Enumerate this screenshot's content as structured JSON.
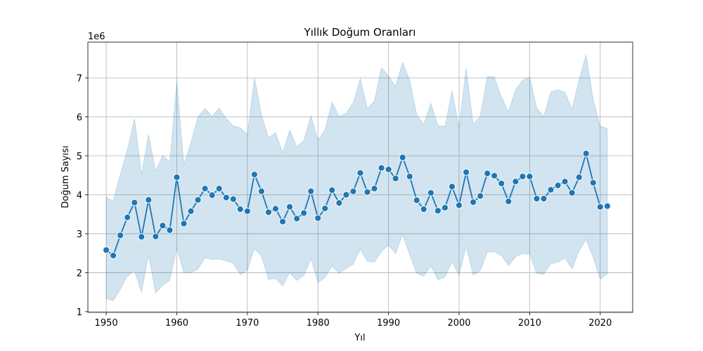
{
  "chart_data": {
    "type": "line",
    "title": "Yıllık Doğum Oranları",
    "xlabel": "Yıl",
    "ylabel": "Doğum Sayısı",
    "y_offset_label": "1e6",
    "xlim": [
      1947.4,
      2024.6
    ],
    "ylim": [
      0.98,
      7.92
    ],
    "x_ticks": [
      1950,
      1960,
      1970,
      1980,
      1990,
      2000,
      2010,
      2020
    ],
    "y_ticks": [
      1,
      2,
      3,
      4,
      5,
      6,
      7
    ],
    "grid": true,
    "colors": {
      "line": "#1f77b4",
      "band": "#1f77b4"
    },
    "series": [
      {
        "x": [
          1950,
          1951,
          1952,
          1953,
          1954,
          1955,
          1956,
          1957,
          1958,
          1959,
          1960,
          1961,
          1962,
          1963,
          1964,
          1965,
          1966,
          1967,
          1968,
          1969,
          1970,
          1971,
          1972,
          1973,
          1974,
          1975,
          1976,
          1977,
          1978,
          1979,
          1980,
          1981,
          1982,
          1983,
          1984,
          1985,
          1986,
          1987,
          1988,
          1989,
          1990,
          1991,
          1992,
          1993,
          1994,
          1995,
          1996,
          1997,
          1998,
          1999,
          2000,
          2001,
          2002,
          2003,
          2004,
          2005,
          2006,
          2007,
          2008,
          2009,
          2010,
          2011,
          2012,
          2013,
          2014,
          2015,
          2016,
          2017,
          2018,
          2019,
          2020,
          2021
        ],
        "y": [
          2.58,
          2.44,
          2.96,
          3.42,
          3.8,
          2.92,
          3.87,
          2.93,
          3.21,
          3.09,
          4.45,
          3.26,
          3.58,
          3.87,
          4.16,
          3.99,
          4.16,
          3.93,
          3.89,
          3.63,
          3.58,
          4.52,
          4.09,
          3.55,
          3.64,
          3.31,
          3.69,
          3.39,
          3.53,
          4.09,
          3.4,
          3.65,
          4.12,
          3.79,
          4.0,
          4.09,
          4.56,
          4.07,
          4.16,
          4.69,
          4.65,
          4.42,
          4.96,
          4.47,
          3.86,
          3.63,
          4.05,
          3.59,
          3.67,
          4.21,
          3.73,
          4.58,
          3.81,
          3.97,
          4.55,
          4.49,
          4.29,
          3.83,
          4.34,
          4.47,
          4.47,
          3.9,
          3.9,
          4.13,
          4.24,
          4.34,
          4.05,
          4.45,
          5.06,
          4.31,
          3.69,
          3.71
        ],
        "lower": [
          1.34,
          1.28,
          1.58,
          1.91,
          2.05,
          1.5,
          2.45,
          1.48,
          1.68,
          1.8,
          2.63,
          2.0,
          2.0,
          2.09,
          2.38,
          2.34,
          2.35,
          2.3,
          2.24,
          1.95,
          2.06,
          2.62,
          2.42,
          1.83,
          1.85,
          1.66,
          2.0,
          1.8,
          1.93,
          2.36,
          1.74,
          1.88,
          2.17,
          1.98,
          2.11,
          2.22,
          2.61,
          2.29,
          2.27,
          2.54,
          2.71,
          2.49,
          2.98,
          2.46,
          1.98,
          1.91,
          2.17,
          1.82,
          1.89,
          2.28,
          1.93,
          2.68,
          1.94,
          2.05,
          2.53,
          2.53,
          2.44,
          2.18,
          2.41,
          2.49,
          2.47,
          1.98,
          1.96,
          2.23,
          2.27,
          2.38,
          2.09,
          2.56,
          2.85,
          2.39,
          1.83,
          1.97
        ],
        "upper": [
          3.93,
          3.84,
          4.53,
          5.15,
          5.95,
          4.52,
          5.54,
          4.61,
          5.0,
          4.84,
          6.91,
          4.77,
          5.34,
          6.0,
          6.21,
          6.01,
          6.23,
          5.96,
          5.77,
          5.72,
          5.55,
          7.0,
          6.05,
          5.46,
          5.6,
          5.07,
          5.66,
          5.24,
          5.39,
          6.03,
          5.41,
          5.66,
          6.38,
          6.01,
          6.09,
          6.37,
          6.98,
          6.21,
          6.41,
          7.26,
          7.05,
          6.78,
          7.4,
          6.94,
          6.05,
          5.81,
          6.35,
          5.78,
          5.75,
          6.67,
          5.73,
          7.25,
          5.81,
          6.02,
          7.03,
          7.02,
          6.51,
          6.13,
          6.7,
          6.94,
          7.02,
          6.23,
          6.01,
          6.64,
          6.7,
          6.63,
          6.2,
          6.94,
          7.6,
          6.44,
          5.76,
          5.7
        ]
      }
    ]
  }
}
